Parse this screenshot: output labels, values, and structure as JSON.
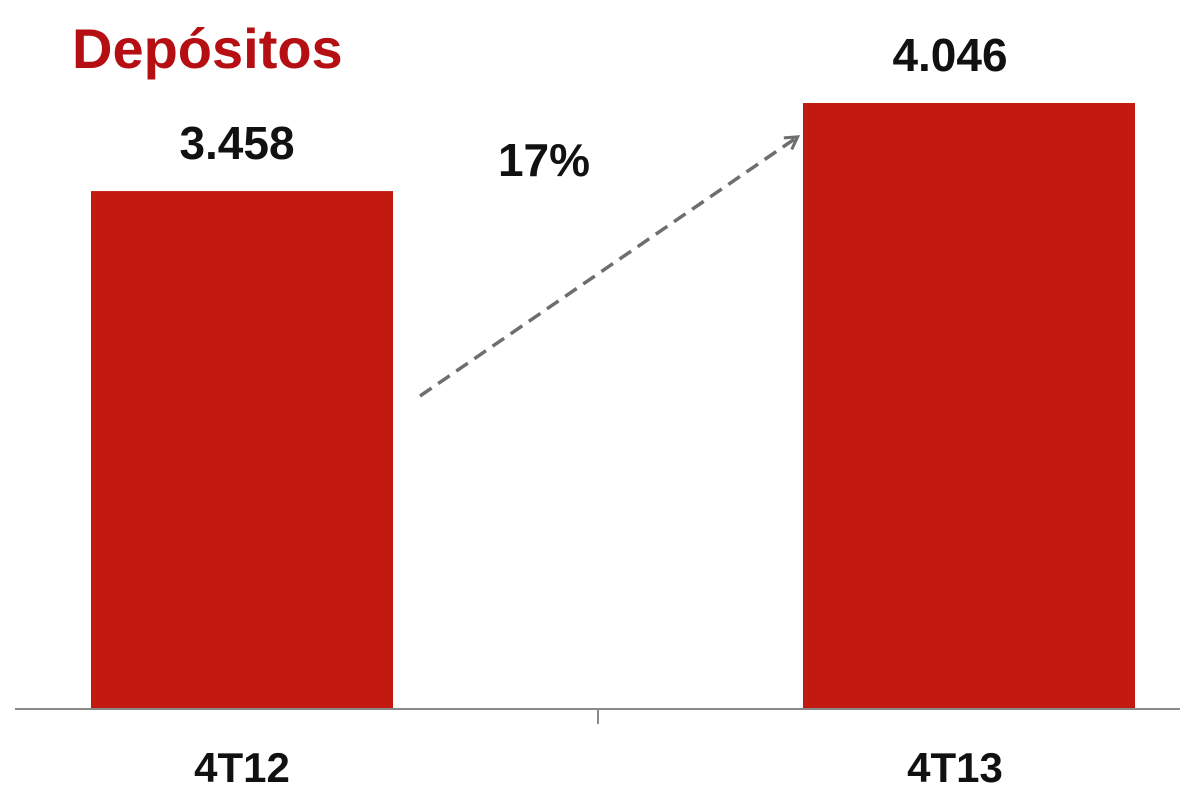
{
  "chart_data": {
    "type": "bar",
    "title": "Depósitos",
    "categories": [
      "4T12",
      "4T13"
    ],
    "values": [
      3458,
      4046
    ],
    "value_labels": [
      "3.458",
      "4.046"
    ],
    "ylim": [
      0,
      4400
    ],
    "grid": false,
    "annotation": {
      "label": "17%",
      "style": "dashed arrow from first bar to second bar"
    }
  },
  "colors": {
    "bar": "#c21a10",
    "title": "#b50f14",
    "axis": "#8a8a8a",
    "arrow": "#6e6e6e",
    "text": "#111111"
  }
}
